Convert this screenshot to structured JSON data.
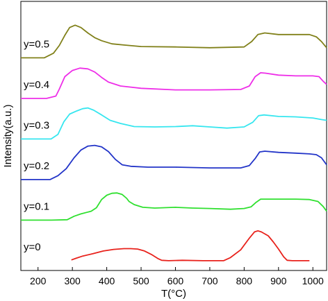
{
  "chart_data": {
    "type": "line",
    "xlabel": "T(°C)",
    "ylabel": "Intensity(a.u.)",
    "xlim": [
      150,
      1040
    ],
    "xticks": [
      200,
      300,
      400,
      500,
      600,
      700,
      800,
      900,
      1000
    ],
    "yticks_shown": false,
    "grid": false,
    "series": [
      {
        "name": "y=0",
        "color": "#e8211b",
        "offset": 0,
        "points": [
          [
            297,
            0.04
          ],
          [
            310,
            0.08
          ],
          [
            330,
            0.14
          ],
          [
            360,
            0.2
          ],
          [
            390,
            0.27
          ],
          [
            420,
            0.31
          ],
          [
            450,
            0.33
          ],
          [
            470,
            0.33
          ],
          [
            490,
            0.32
          ],
          [
            510,
            0.27
          ],
          [
            530,
            0.18
          ],
          [
            550,
            0.07
          ],
          [
            560,
            0.03
          ],
          [
            580,
            0.02
          ],
          [
            620,
            0.03
          ],
          [
            680,
            0.02
          ],
          [
            740,
            0.02
          ],
          [
            760,
            0.1
          ],
          [
            790,
            0.3
          ],
          [
            815,
            0.6
          ],
          [
            830,
            0.76
          ],
          [
            840,
            0.79
          ],
          [
            850,
            0.76
          ],
          [
            870,
            0.66
          ],
          [
            885,
            0.5
          ],
          [
            900,
            0.32
          ],
          [
            915,
            0.12
          ],
          [
            925,
            0.03
          ],
          [
            940,
            0.02
          ],
          [
            990,
            0.02
          ]
        ]
      },
      {
        "name": "y=0.1",
        "color": "#2fe02f",
        "offset": 1,
        "points": [
          [
            150,
            0.02
          ],
          [
            240,
            0.02
          ],
          [
            285,
            0.03
          ],
          [
            305,
            0.12
          ],
          [
            325,
            0.18
          ],
          [
            355,
            0.25
          ],
          [
            370,
            0.34
          ],
          [
            385,
            0.55
          ],
          [
            400,
            0.66
          ],
          [
            415,
            0.71
          ],
          [
            430,
            0.72
          ],
          [
            445,
            0.68
          ],
          [
            458,
            0.58
          ],
          [
            465,
            0.5
          ],
          [
            480,
            0.42
          ],
          [
            505,
            0.35
          ],
          [
            540,
            0.33
          ],
          [
            600,
            0.35
          ],
          [
            650,
            0.33
          ],
          [
            700,
            0.32
          ],
          [
            760,
            0.3
          ],
          [
            800,
            0.32
          ],
          [
            820,
            0.36
          ],
          [
            835,
            0.48
          ],
          [
            848,
            0.56
          ],
          [
            870,
            0.56
          ],
          [
            900,
            0.56
          ],
          [
            950,
            0.56
          ],
          [
            990,
            0.55
          ],
          [
            1015,
            0.5
          ],
          [
            1030,
            0.37
          ],
          [
            1040,
            0.25
          ]
        ]
      },
      {
        "name": "y=0.2",
        "color": "#2234c8",
        "offset": 2,
        "points": [
          [
            150,
            0.02
          ],
          [
            235,
            0.02
          ],
          [
            258,
            0.12
          ],
          [
            282,
            0.3
          ],
          [
            305,
            0.58
          ],
          [
            325,
            0.78
          ],
          [
            345,
            0.88
          ],
          [
            365,
            0.9
          ],
          [
            385,
            0.86
          ],
          [
            405,
            0.74
          ],
          [
            425,
            0.54
          ],
          [
            445,
            0.4
          ],
          [
            470,
            0.36
          ],
          [
            520,
            0.34
          ],
          [
            600,
            0.34
          ],
          [
            700,
            0.32
          ],
          [
            790,
            0.32
          ],
          [
            815,
            0.38
          ],
          [
            832,
            0.56
          ],
          [
            845,
            0.73
          ],
          [
            860,
            0.75
          ],
          [
            900,
            0.72
          ],
          [
            950,
            0.7
          ],
          [
            990,
            0.68
          ],
          [
            1010,
            0.66
          ],
          [
            1025,
            0.58
          ],
          [
            1040,
            0.4
          ]
        ]
      },
      {
        "name": "y=0.3",
        "color": "#35e6ef",
        "offset": 3,
        "points": [
          [
            150,
            0.02
          ],
          [
            238,
            0.02
          ],
          [
            258,
            0.14
          ],
          [
            275,
            0.46
          ],
          [
            292,
            0.66
          ],
          [
            312,
            0.74
          ],
          [
            330,
            0.8
          ],
          [
            345,
            0.82
          ],
          [
            362,
            0.76
          ],
          [
            385,
            0.64
          ],
          [
            410,
            0.5
          ],
          [
            440,
            0.42
          ],
          [
            480,
            0.34
          ],
          [
            540,
            0.33
          ],
          [
            600,
            0.34
          ],
          [
            650,
            0.36
          ],
          [
            700,
            0.33
          ],
          [
            750,
            0.3
          ],
          [
            800,
            0.33
          ],
          [
            825,
            0.45
          ],
          [
            842,
            0.62
          ],
          [
            858,
            0.64
          ],
          [
            900,
            0.6
          ],
          [
            950,
            0.59
          ],
          [
            1000,
            0.56
          ],
          [
            1025,
            0.52
          ],
          [
            1040,
            0.5
          ]
        ]
      },
      {
        "name": "y=0.4",
        "color": "#ee2ee8",
        "offset": 4,
        "points": [
          [
            150,
            0.02
          ],
          [
            225,
            0.02
          ],
          [
            252,
            0.08
          ],
          [
            262,
            0.26
          ],
          [
            278,
            0.58
          ],
          [
            300,
            0.74
          ],
          [
            322,
            0.8
          ],
          [
            345,
            0.78
          ],
          [
            365,
            0.7
          ],
          [
            385,
            0.56
          ],
          [
            405,
            0.44
          ],
          [
            440,
            0.34
          ],
          [
            500,
            0.28
          ],
          [
            600,
            0.24
          ],
          [
            700,
            0.24
          ],
          [
            790,
            0.25
          ],
          [
            815,
            0.34
          ],
          [
            832,
            0.58
          ],
          [
            848,
            0.68
          ],
          [
            862,
            0.67
          ],
          [
            900,
            0.62
          ],
          [
            950,
            0.6
          ],
          [
            1000,
            0.6
          ],
          [
            1018,
            0.58
          ],
          [
            1030,
            0.46
          ],
          [
            1040,
            0.38
          ]
        ]
      },
      {
        "name": "y=0.5",
        "color": "#808019",
        "offset": 5,
        "points": [
          [
            150,
            0.02
          ],
          [
            218,
            0.02
          ],
          [
            245,
            0.14
          ],
          [
            262,
            0.34
          ],
          [
            278,
            0.6
          ],
          [
            292,
            0.8
          ],
          [
            308,
            0.86
          ],
          [
            325,
            0.8
          ],
          [
            345,
            0.66
          ],
          [
            365,
            0.54
          ],
          [
            385,
            0.46
          ],
          [
            415,
            0.38
          ],
          [
            450,
            0.35
          ],
          [
            500,
            0.31
          ],
          [
            600,
            0.3
          ],
          [
            700,
            0.28
          ],
          [
            800,
            0.3
          ],
          [
            822,
            0.44
          ],
          [
            840,
            0.62
          ],
          [
            860,
            0.66
          ],
          [
            900,
            0.62
          ],
          [
            950,
            0.62
          ],
          [
            990,
            0.62
          ],
          [
            1010,
            0.56
          ],
          [
            1025,
            0.44
          ],
          [
            1040,
            0.28
          ]
        ]
      }
    ]
  }
}
